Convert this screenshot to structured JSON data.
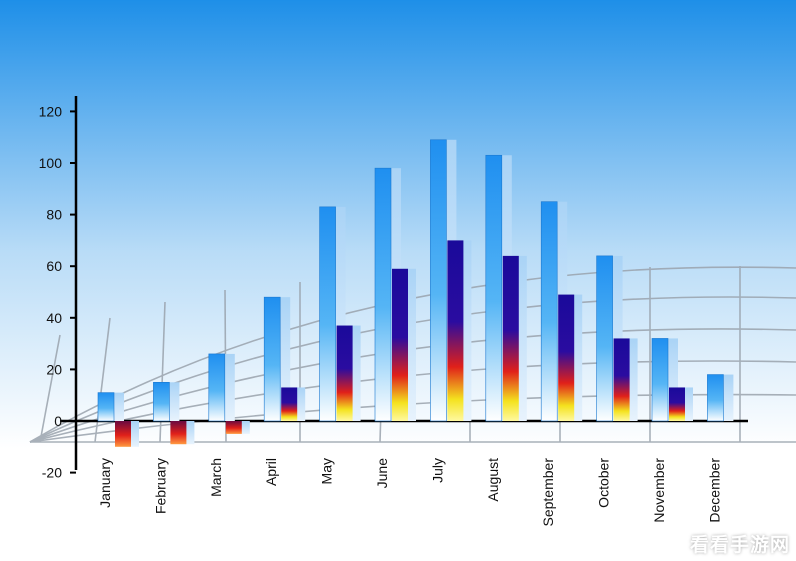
{
  "chart_data": {
    "type": "bar",
    "categories": [
      "January",
      "February",
      "March",
      "April",
      "May",
      "June",
      "July",
      "August",
      "September",
      "October",
      "November",
      "December"
    ],
    "series": [
      {
        "values": [
          11,
          15,
          26,
          48,
          83,
          98,
          109,
          103,
          85,
          64,
          32,
          18
        ]
      },
      {
        "values": [
          -10,
          -9,
          -5,
          13,
          37,
          59,
          70,
          64,
          49,
          32,
          13,
          0
        ]
      }
    ],
    "yticks": [
      "120",
      "100",
      "80",
      "60",
      "40",
      "20",
      "0",
      "-20"
    ],
    "ylim": [
      -20,
      120
    ],
    "grid": false,
    "colors": {
      "background_top": "#1e8fe8",
      "background_bottom": "#ffffff",
      "bar_primary": "#2a9df2",
      "bar_secondary_top": "#1a0a9a",
      "bar_secondary_mid": "#e0201a",
      "bar_secondary_bottom": "#f4f020",
      "bar_negative": "#d41a10"
    }
  },
  "watermark": "看看手游网"
}
